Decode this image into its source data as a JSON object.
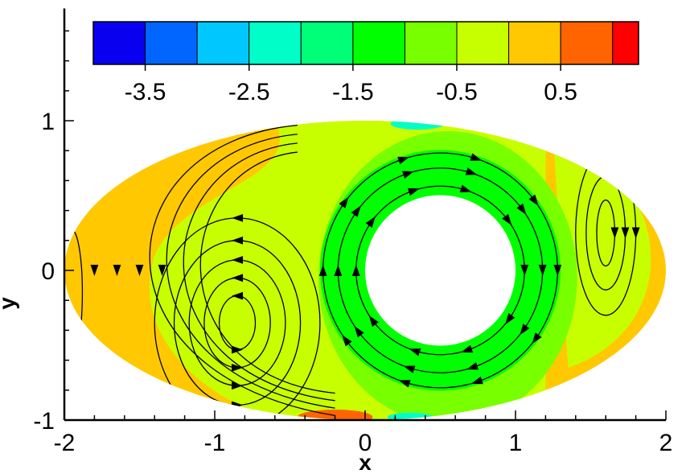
{
  "chart_data": {
    "type": "contour",
    "xlabel": "x",
    "ylabel": "y",
    "xlim": [
      -2,
      2
    ],
    "ylim": [
      -1,
      1.75
    ],
    "x_ticks": [
      {
        "value": -2,
        "label": "-2"
      },
      {
        "value": -1,
        "label": "-1"
      },
      {
        "value": 0,
        "label": "0"
      },
      {
        "value": 1,
        "label": "1"
      },
      {
        "value": 2,
        "label": "2"
      }
    ],
    "y_ticks": [
      {
        "value": -1,
        "label": "-1"
      },
      {
        "value": 0,
        "label": "0"
      },
      {
        "value": 1,
        "label": "1"
      }
    ],
    "domain": {
      "shape": "ellipse",
      "center": [
        0,
        0
      ],
      "semi_axes": [
        2,
        1
      ]
    },
    "hole": {
      "shape": "circle",
      "center": [
        0.5,
        0
      ],
      "radius": 0.5
    },
    "vortices": [
      {
        "center": [
          -0.85,
          -0.35
        ]
      },
      {
        "center": [
          -1.95,
          -0.15
        ]
      },
      {
        "center": [
          1.6,
          0.25
        ]
      }
    ],
    "colorbar": {
      "levels": [
        -4.0,
        -3.5,
        -3.0,
        -2.5,
        -2.0,
        -1.5,
        -1.0,
        -0.5,
        0.0,
        0.5,
        1.0,
        1.25
      ],
      "colors": [
        "#0a00f0",
        "#0066ff",
        "#00c8ff",
        "#00ffc8",
        "#00ff78",
        "#00ff00",
        "#78ff00",
        "#c8ff00",
        "#ffc800",
        "#ff6400",
        "#ff0000"
      ],
      "tick_values": [
        -3.5,
        -2.5,
        -1.5,
        -0.5,
        0.5
      ],
      "tick_labels": [
        "-3.5",
        "-2.5",
        "-1.5",
        "-0.5",
        "0.5"
      ]
    }
  }
}
